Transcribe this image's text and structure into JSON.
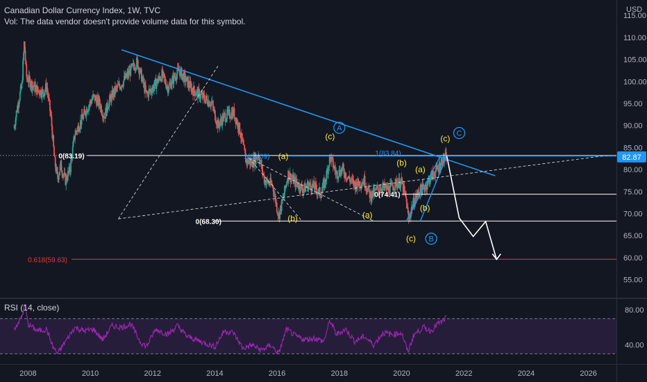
{
  "legend": {
    "title": "Canadian Dollar Currency Index, 1W, TVC",
    "volume_note": "Vol: The data vendor doesn't provide volume data for this symbol.",
    "rsi_title": "RSI (14, close)"
  },
  "colors": {
    "background": "#131722",
    "candle_up": "#26a69a",
    "candle_down": "#ef5350",
    "trendline": "#2196f3",
    "wave_label": "#ffeb3b",
    "fib_red": "#e53935",
    "rsi_line": "#9c27b0",
    "rsi_band": "#2a1e3f",
    "price_tag": "#2196f3"
  },
  "chart_data": [
    {
      "type": "candlestick",
      "xlim": [
        2007.1,
        2026.9
      ],
      "ylim": [
        51.0,
        118.5
      ],
      "price_axis_unit": "USD",
      "y_ticks": [
        55.0,
        60.0,
        65.0,
        70.0,
        75.0,
        80.0,
        85.0,
        90.0,
        95.0,
        100.0,
        105.0,
        110.0,
        115.0
      ],
      "x_ticks": [
        2008,
        2010,
        2012,
        2014,
        2016,
        2018,
        2020,
        2022,
        2024,
        2026
      ],
      "last_price": 82.87,
      "price_path": [
        [
          2007.55,
          89.5
        ],
        [
          2007.65,
          94.0
        ],
        [
          2007.8,
          99.0
        ],
        [
          2007.88,
          109.0
        ],
        [
          2007.95,
          101.0
        ],
        [
          2008.1,
          99.5
        ],
        [
          2008.3,
          98.0
        ],
        [
          2008.5,
          97.5
        ],
        [
          2008.6,
          99.0
        ],
        [
          2008.75,
          91.0
        ],
        [
          2008.85,
          82.0
        ],
        [
          2008.95,
          78.0
        ],
        [
          2009.05,
          81.0
        ],
        [
          2009.2,
          77.5
        ],
        [
          2009.35,
          80.0
        ],
        [
          2009.5,
          88.0
        ],
        [
          2009.7,
          91.0
        ],
        [
          2009.9,
          94.0
        ],
        [
          2010.1,
          96.5
        ],
        [
          2010.3,
          95.0
        ],
        [
          2010.45,
          92.0
        ],
        [
          2010.6,
          95.5
        ],
        [
          2010.8,
          98.0
        ],
        [
          2011.0,
          99.5
        ],
        [
          2011.25,
          102.0
        ],
        [
          2011.5,
          104.5
        ],
        [
          2011.65,
          101.0
        ],
        [
          2011.8,
          97.0
        ],
        [
          2012.0,
          98.5
        ],
        [
          2012.3,
          101.5
        ],
        [
          2012.5,
          98.5
        ],
        [
          2012.7,
          101.0
        ],
        [
          2012.85,
          102.5
        ],
        [
          2013.0,
          101.0
        ],
        [
          2013.3,
          98.0
        ],
        [
          2013.6,
          96.5
        ],
        [
          2013.9,
          95.0
        ],
        [
          2014.1,
          90.0
        ],
        [
          2014.3,
          92.0
        ],
        [
          2014.6,
          93.0
        ],
        [
          2014.8,
          89.0
        ],
        [
          2015.0,
          82.0
        ],
        [
          2015.2,
          81.5
        ],
        [
          2015.4,
          83.5
        ],
        [
          2015.6,
          77.5
        ],
        [
          2015.85,
          76.5
        ],
        [
          2016.05,
          69.5
        ],
        [
          2016.2,
          73.5
        ],
        [
          2016.35,
          79.0
        ],
        [
          2016.6,
          77.0
        ],
        [
          2016.85,
          75.5
        ],
        [
          2017.0,
          76.5
        ],
        [
          2017.2,
          76.0
        ],
        [
          2017.4,
          74.5
        ],
        [
          2017.55,
          77.5
        ],
        [
          2017.7,
          83.0
        ],
        [
          2017.9,
          79.0
        ],
        [
          2018.1,
          80.0
        ],
        [
          2018.3,
          78.0
        ],
        [
          2018.5,
          76.5
        ],
        [
          2018.8,
          77.5
        ],
        [
          2019.0,
          74.0
        ],
        [
          2019.3,
          76.0
        ],
        [
          2019.6,
          75.5
        ],
        [
          2019.85,
          77.0
        ],
        [
          2020.0,
          77.0
        ],
        [
          2020.15,
          73.0
        ],
        [
          2020.22,
          68.5
        ],
        [
          2020.35,
          72.0
        ],
        [
          2020.55,
          75.0
        ],
        [
          2020.75,
          76.0
        ],
        [
          2020.95,
          78.5
        ],
        [
          2021.15,
          80.0
        ],
        [
          2021.3,
          82.0
        ],
        [
          2021.45,
          82.9
        ]
      ],
      "annotations": {
        "fib_levels": [
          {
            "label": "0(83.19)",
            "value": 83.19
          },
          {
            "label": "1(83.09)",
            "value": 83.09
          },
          {
            "label": "1(83.84)",
            "value": 83.84
          },
          {
            "label": "0(74.41)",
            "value": 74.41
          },
          {
            "label": "0(68.30)",
            "value": 68.3
          },
          {
            "label": "0.618(59.63)",
            "value": 59.63
          }
        ],
        "wave_labels": [
          {
            "text": "(a)",
            "x": 2016.2,
            "y": 83.0
          },
          {
            "text": "(b)",
            "x": 2016.5,
            "y": 68.9
          },
          {
            "text": "(c)",
            "x": 2017.7,
            "y": 87.5
          },
          {
            "text": "(a)",
            "x": 2018.9,
            "y": 69.7
          },
          {
            "text": "(b)",
            "x": 2020.0,
            "y": 81.5
          },
          {
            "text": "(a)",
            "x": 2020.6,
            "y": 80.0
          },
          {
            "text": "(b)",
            "x": 2020.75,
            "y": 71.3
          },
          {
            "text": "(c)",
            "x": 2020.3,
            "y": 64.3
          },
          {
            "text": "(c)",
            "x": 2021.4,
            "y": 87.0
          }
        ],
        "wave_circles": [
          {
            "text": "A",
            "x": 2018.0,
            "y": 89.5
          },
          {
            "text": "B",
            "x": 2020.95,
            "y": 64.3
          },
          {
            "text": "C",
            "x": 2021.85,
            "y": 88.3
          }
        ],
        "projection_path": [
          [
            2021.45,
            83.1
          ],
          [
            2021.85,
            69.0
          ],
          [
            2022.3,
            64.8
          ],
          [
            2022.7,
            68.2
          ],
          [
            2023.05,
            59.6
          ]
        ]
      }
    },
    {
      "type": "line",
      "title": "RSI (14, close)",
      "ylim": [
        20,
        92
      ],
      "y_ticks": [
        40.0,
        80.0
      ],
      "band": [
        30,
        70
      ],
      "rsi_path": [
        [
          2007.55,
          58
        ],
        [
          2007.8,
          72
        ],
        [
          2007.9,
          86
        ],
        [
          2008.0,
          64
        ],
        [
          2008.3,
          56
        ],
        [
          2008.6,
          58
        ],
        [
          2008.8,
          38
        ],
        [
          2008.95,
          30
        ],
        [
          2009.2,
          44
        ],
        [
          2009.5,
          60
        ],
        [
          2009.8,
          56
        ],
        [
          2010.1,
          58
        ],
        [
          2010.4,
          46
        ],
        [
          2010.7,
          62
        ],
        [
          2011.0,
          60
        ],
        [
          2011.3,
          64
        ],
        [
          2011.6,
          44
        ],
        [
          2011.8,
          38
        ],
        [
          2012.1,
          58
        ],
        [
          2012.5,
          52
        ],
        [
          2012.8,
          62
        ],
        [
          2013.1,
          50
        ],
        [
          2013.4,
          46
        ],
        [
          2013.7,
          42
        ],
        [
          2014.0,
          38
        ],
        [
          2014.3,
          56
        ],
        [
          2014.6,
          54
        ],
        [
          2014.9,
          36
        ],
        [
          2015.2,
          40
        ],
        [
          2015.5,
          34
        ],
        [
          2015.8,
          40
        ],
        [
          2016.05,
          30
        ],
        [
          2016.3,
          58
        ],
        [
          2016.6,
          50
        ],
        [
          2016.9,
          46
        ],
        [
          2017.2,
          48
        ],
        [
          2017.5,
          44
        ],
        [
          2017.7,
          68
        ],
        [
          2017.9,
          52
        ],
        [
          2018.2,
          58
        ],
        [
          2018.5,
          44
        ],
        [
          2018.8,
          50
        ],
        [
          2019.1,
          40
        ],
        [
          2019.4,
          54
        ],
        [
          2019.7,
          52
        ],
        [
          2020.0,
          54
        ],
        [
          2020.2,
          32
        ],
        [
          2020.4,
          52
        ],
        [
          2020.7,
          60
        ],
        [
          2020.95,
          56
        ],
        [
          2021.15,
          64
        ],
        [
          2021.3,
          66
        ],
        [
          2021.45,
          72
        ]
      ]
    }
  ]
}
